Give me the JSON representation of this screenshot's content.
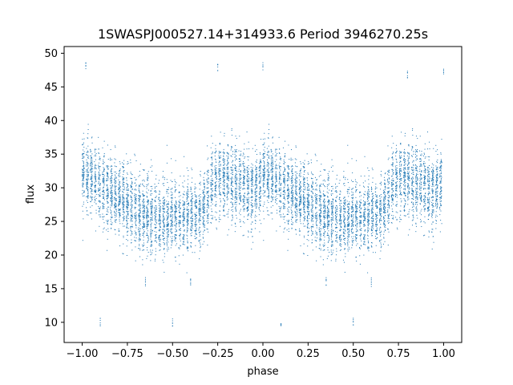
{
  "chart_data": {
    "type": "scatter",
    "title": "1SWASPJ000527.14+314933.6 Period 3946270.25s",
    "xlabel": "phase",
    "ylabel": "flux",
    "xlim": [
      -1.1,
      1.1
    ],
    "ylim": [
      7,
      51
    ],
    "xticks": [
      -1.0,
      -0.75,
      -0.5,
      -0.25,
      0.0,
      0.25,
      0.5,
      0.75,
      1.0
    ],
    "xtick_labels": [
      "−1.00",
      "−0.75",
      "−0.50",
      "−0.25",
      "0.00",
      "0.25",
      "0.50",
      "0.75",
      "1.00"
    ],
    "yticks": [
      10,
      15,
      20,
      25,
      30,
      35,
      40,
      45,
      50
    ],
    "ytick_labels": [
      "10",
      "15",
      "20",
      "25",
      "30",
      "35",
      "40",
      "45",
      "50"
    ],
    "grid": false,
    "marker_color": "#1f77b4",
    "folded": true,
    "light_curve": {
      "phase": [
        0.0,
        0.05,
        0.1,
        0.15,
        0.2,
        0.25,
        0.3,
        0.35,
        0.4,
        0.45,
        0.5,
        0.55,
        0.6,
        0.65,
        0.7,
        0.75,
        0.8,
        0.85,
        0.9,
        0.95
      ],
      "mean_flux": [
        32.0,
        31.5,
        30.5,
        29.5,
        28.5,
        27.5,
        26.5,
        26.0,
        25.8,
        25.5,
        25.5,
        25.5,
        26.0,
        26.0,
        29.5,
        31.5,
        31.5,
        30.5,
        30.0,
        29.5
      ]
    },
    "outliers": [
      {
        "phase": -0.65,
        "flux": 16.0
      },
      {
        "phase": -0.4,
        "flux": 16.0
      },
      {
        "phase": 0.35,
        "flux": 16.0
      },
      {
        "phase": 0.6,
        "flux": 16.0
      },
      {
        "phase": -0.98,
        "flux": 48.0
      },
      {
        "phase": 0.0,
        "flux": 48.0
      },
      {
        "phase": 1.0,
        "flux": 47.5
      },
      {
        "phase": 0.8,
        "flux": 47.0
      },
      {
        "phase": -0.25,
        "flux": 48.0
      },
      {
        "phase": -0.5,
        "flux": 10.0
      },
      {
        "phase": 0.5,
        "flux": 10.0
      },
      {
        "phase": -0.9,
        "flux": 10.0
      },
      {
        "phase": 0.1,
        "flux": 10.0
      }
    ]
  }
}
